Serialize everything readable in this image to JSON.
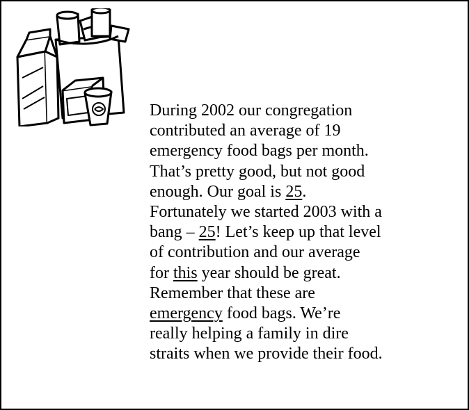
{
  "body": {
    "lines": [
      [
        "During 2002 our congregation"
      ],
      [
        "contributed an average of 19"
      ],
      [
        "emergency food bags per month."
      ],
      [
        "That’s pretty good, but not good"
      ],
      [
        "enough. Our goal is ",
        {
          "text": "25",
          "underline": true
        },
        "."
      ],
      [
        "Fortunately we started 2003 with a"
      ],
      [
        "bang – ",
        {
          "text": "25",
          "underline": true
        },
        "! Let’s keep up that level"
      ],
      [
        "of contribution and our average"
      ],
      [
        "for ",
        {
          "text": "this",
          "underline": true
        },
        " year should be great."
      ],
      [
        "Remember that these are"
      ],
      [
        {
          "text": "emergency",
          "underline": true
        },
        " food bags. We’re"
      ],
      [
        "really helping a family in dire"
      ],
      [
        "straits when we provide their food."
      ]
    ]
  }
}
